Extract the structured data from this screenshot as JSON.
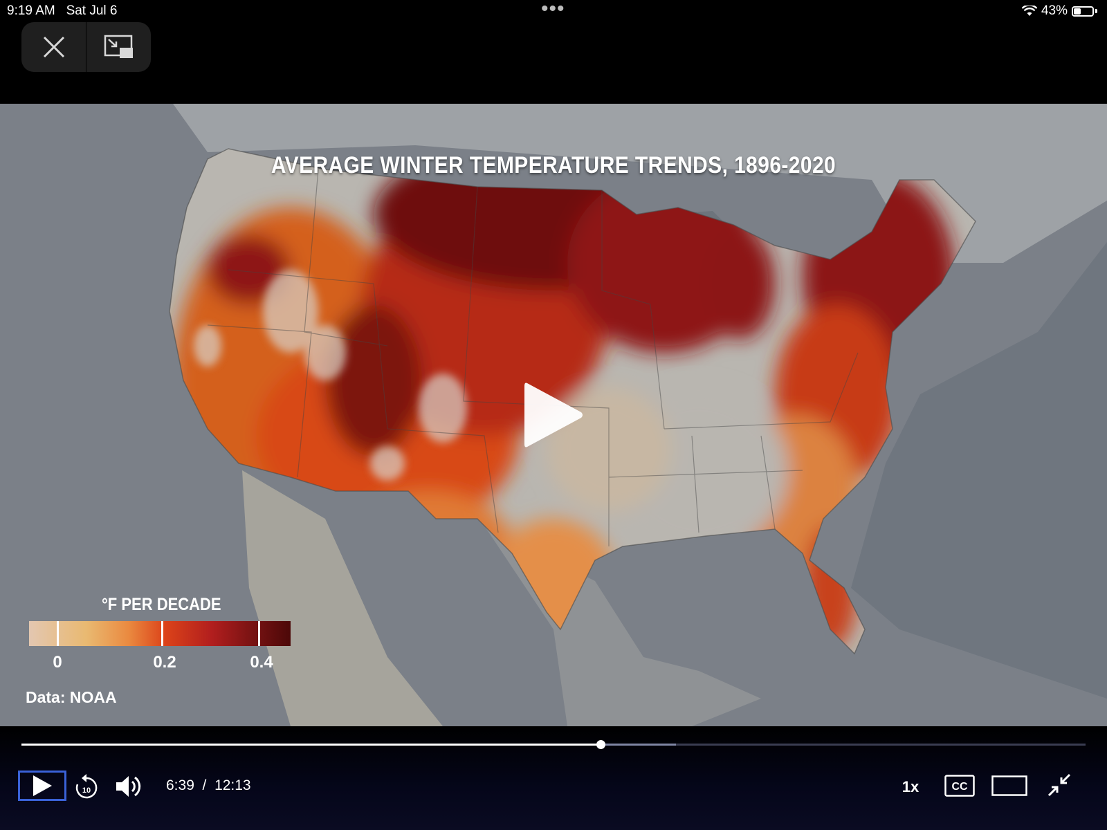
{
  "status_bar": {
    "time": "9:19 AM",
    "date": "Sat Jul 6",
    "battery": "43%",
    "battery_level": 0.43
  },
  "top_controls": {
    "close_icon": "close-icon",
    "pip_icon": "picture-in-picture-exit-icon"
  },
  "video": {
    "title": "AVERAGE WINTER TEMPERATURE TRENDS, 1896-2020",
    "legend": {
      "title": "°F PER DECADE",
      "labels": [
        "0",
        "0.2",
        "0.4"
      ]
    },
    "source": "Data: NOAA"
  },
  "player": {
    "current_time": "6:39",
    "separator": "/",
    "duration": "12:13",
    "progress": 0.544,
    "buffered": 0.615,
    "speed": "1x",
    "cc_label": "CC"
  }
}
